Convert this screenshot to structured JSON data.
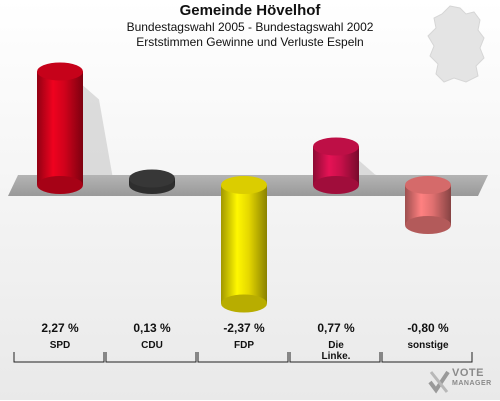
{
  "header": {
    "title": "Gemeinde Hövelhof",
    "subtitle1": "Bundestagswahl 2005 - Bundestagswahl 2002",
    "subtitle2": "Erststimmen Gewinne und Verluste Espeln"
  },
  "logo": {
    "line1": "VOTE",
    "line2": "MANAGER"
  },
  "chart_data": {
    "type": "bar",
    "title": "Gemeinde Hövelhof",
    "categories": [
      "SPD",
      "CDU",
      "FDP",
      "Die Linke.",
      "sonstige"
    ],
    "values": [
      2.27,
      0.13,
      -2.37,
      0.77,
      -0.8
    ],
    "value_labels": [
      "2,27 %",
      "0,13 %",
      "-2,37 %",
      "0,77 %",
      "-0,80 %"
    ],
    "colors": [
      "#d0021b",
      "#3a3a3a",
      "#e6d800",
      "#c8104a",
      "#e07070"
    ],
    "xlabel": "",
    "ylabel": "",
    "ylim": [
      -2.5,
      2.5
    ],
    "legend": "none",
    "grid": false
  }
}
